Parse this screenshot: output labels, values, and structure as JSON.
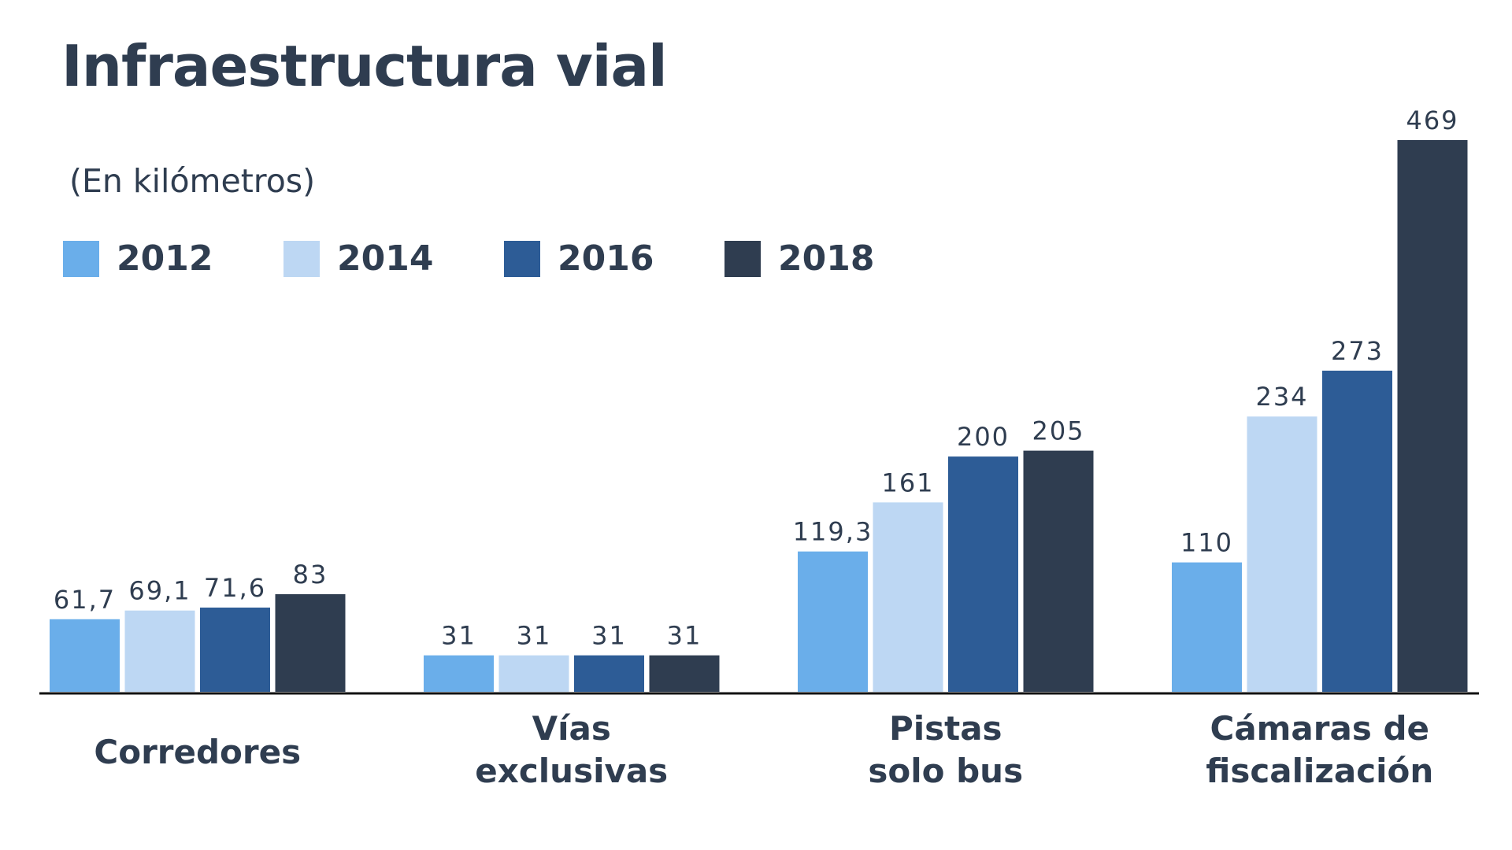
{
  "title": "Infraestructura vial",
  "subtitle": "(En kilómetros)",
  "legend": [
    {
      "label": "2012",
      "color": "#6aaeea"
    },
    {
      "label": "2014",
      "color": "#bdd7f3"
    },
    {
      "label": "2016",
      "color": "#2d5c96"
    },
    {
      "label": "2018",
      "color": "#2f3d50"
    }
  ],
  "chart_data": {
    "type": "bar",
    "title": "Infraestructura vial",
    "subtitle": "(En kilómetros)",
    "categories": [
      [
        "Corredores"
      ],
      [
        "Vías",
        "exclusivas"
      ],
      [
        "Pistas",
        "solo bus"
      ],
      [
        "Cámaras de",
        "fiscalización"
      ]
    ],
    "series": [
      {
        "name": "2012",
        "color": "#6aaeea",
        "values": [
          61.7,
          31,
          119.3,
          110
        ],
        "labels": [
          "61,7",
          "31",
          "119,3",
          "110"
        ]
      },
      {
        "name": "2014",
        "color": "#bdd7f3",
        "values": [
          69.1,
          31,
          161,
          234
        ],
        "labels": [
          "69,1",
          "31",
          "161",
          "234"
        ]
      },
      {
        "name": "2016",
        "color": "#2d5c96",
        "values": [
          71.6,
          31,
          200,
          273
        ],
        "labels": [
          "71,6",
          "31",
          "200",
          "273"
        ]
      },
      {
        "name": "2018",
        "color": "#2f3d50",
        "values": [
          83,
          31,
          205,
          469
        ],
        "labels": [
          "83",
          "31",
          "205",
          "469"
        ]
      }
    ],
    "ylim": [
      0,
      469
    ],
    "grid": false,
    "legend_position": "top-left"
  }
}
